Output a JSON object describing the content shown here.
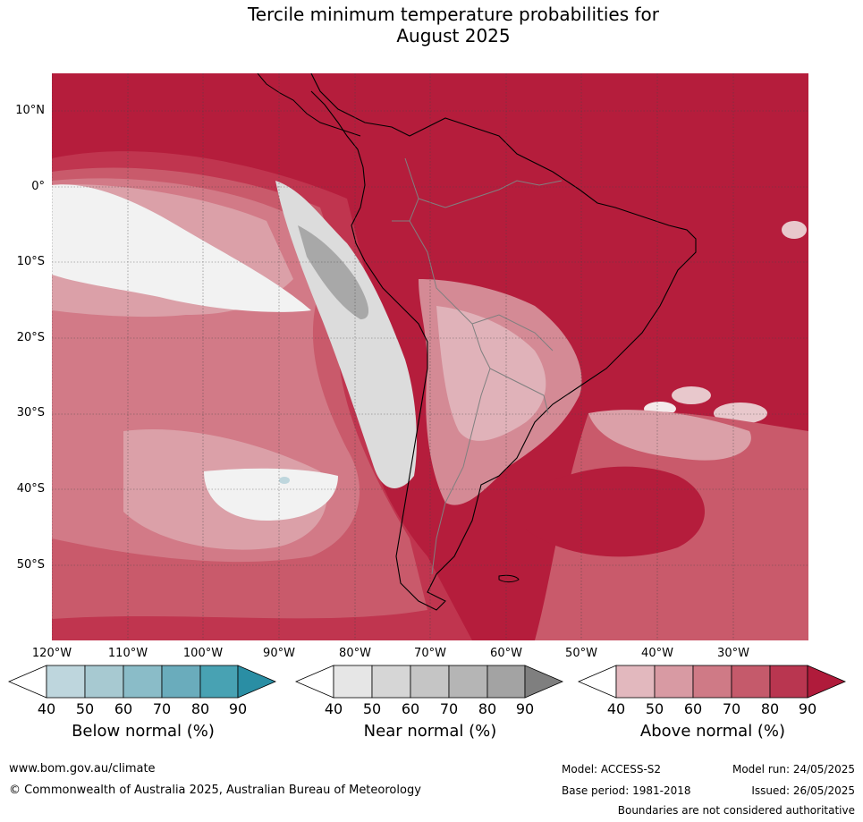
{
  "title_line1": "Tercile minimum temperature probabilities for",
  "title_line2": "August 2025",
  "lat_labels": [
    "10°N",
    "0°",
    "10°S",
    "20°S",
    "30°S",
    "40°S",
    "50°S"
  ],
  "lon_labels": [
    "120°W",
    "110°W",
    "100°W",
    "90°W",
    "80°W",
    "70°W",
    "60°W",
    "50°W",
    "40°W",
    "30°W"
  ],
  "legends": {
    "below": {
      "title": "Below normal (%)",
      "ticks": [
        "40",
        "50",
        "60",
        "70",
        "80",
        "90"
      ],
      "colors": [
        "#ffffff",
        "#bed6dd",
        "#a7c9d1",
        "#8abcc8",
        "#6aacbc",
        "#48a2b3",
        "#2a8ea4"
      ]
    },
    "near": {
      "title": "Near normal (%)",
      "ticks": [
        "40",
        "50",
        "60",
        "70",
        "80",
        "90"
      ],
      "colors": [
        "#ffffff",
        "#e6e6e6",
        "#d6d6d6",
        "#c5c5c5",
        "#b5b5b5",
        "#a3a3a3",
        "#7f7f7f"
      ]
    },
    "above": {
      "title": "Above normal (%)",
      "ticks": [
        "40",
        "50",
        "60",
        "70",
        "80",
        "90"
      ],
      "colors": [
        "#ffffff",
        "#e2b8be",
        "#d89aa3",
        "#cf7a86",
        "#c55a6b",
        "#b93650",
        "#b01b3b"
      ]
    }
  },
  "footer": {
    "url": "www.bom.gov.au/climate",
    "copyright": "© Commonwealth of Australia 2025, Australian Bureau of Meteorology",
    "model": "Model: ACCESS-S2",
    "base_period": "Base period: 1981-2018",
    "model_run": "Model run: 24/05/2025",
    "issued": "Issued: 26/05/2025",
    "disclaimer": "Boundaries are not considered authoritative"
  }
}
